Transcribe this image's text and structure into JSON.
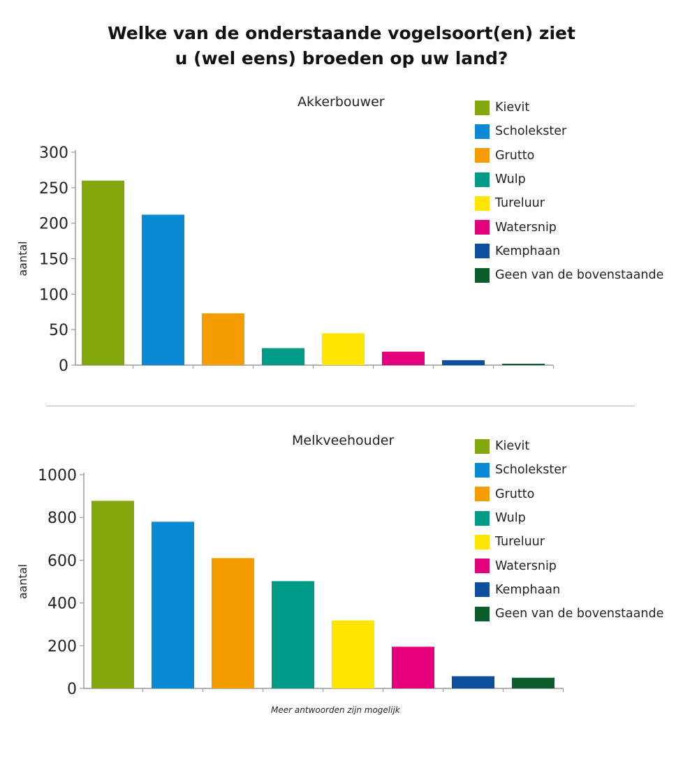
{
  "title_lines": [
    "Welke van de onderstaande vogelsoort(en) ziet",
    "u (wel eens) broeden op uw land?"
  ],
  "footnote": "Meer antwoorden zijn mogelijk",
  "colors": {
    "Kievit": "#82a80e",
    "Scholekster": "#0a8ad4",
    "Grutto": "#f59c00",
    "Wulp": "#009a87",
    "Tureluur": "#ffe600",
    "Watersnip": "#e4007c",
    "Kemphaan": "#0d4f9e",
    "Geen van de bovenstaande": "#0b5e2b"
  },
  "chart_data": [
    {
      "type": "bar",
      "title": "Akkerbouwer",
      "ylabel": "aantal",
      "xlabel": "",
      "categories": [
        "Kievit",
        "Scholekster",
        "Grutto",
        "Wulp",
        "Tureluur",
        "Watersnip",
        "Kemphaan",
        "Geen van de bovenstaande"
      ],
      "values": [
        260,
        212,
        73,
        24,
        45,
        19,
        7,
        2
      ],
      "ylim": [
        0,
        300
      ],
      "yticks": [
        "0",
        "50",
        "100",
        "150",
        "200",
        "250",
        "300"
      ],
      "grid": false,
      "legend": "right",
      "legend_entries": [
        "Kievit",
        "Scholekster",
        "Grutto",
        "Wulp",
        "Tureluur",
        "Watersnip",
        "Kemphaan",
        "Geen van de bovenstaande"
      ]
    },
    {
      "type": "bar",
      "title": "Melkveehouder",
      "ylabel": "aantal",
      "xlabel": "",
      "categories": [
        "Kievit",
        "Scholekster",
        "Grutto",
        "Wulp",
        "Tureluur",
        "Watersnip",
        "Kemphaan",
        "Geen van de bovenstaande"
      ],
      "values": [
        878,
        780,
        610,
        502,
        318,
        195,
        57,
        50
      ],
      "ylim": [
        0,
        1000
      ],
      "yticks": [
        "0",
        "200",
        "400",
        "600",
        "800",
        "1000"
      ],
      "grid": false,
      "legend": "right",
      "legend_entries": [
        "Kievit",
        "Scholekster",
        "Grutto",
        "Wulp",
        "Tureluur",
        "Watersnip",
        "Kemphaan",
        "Geen van de bovenstaande"
      ]
    }
  ]
}
